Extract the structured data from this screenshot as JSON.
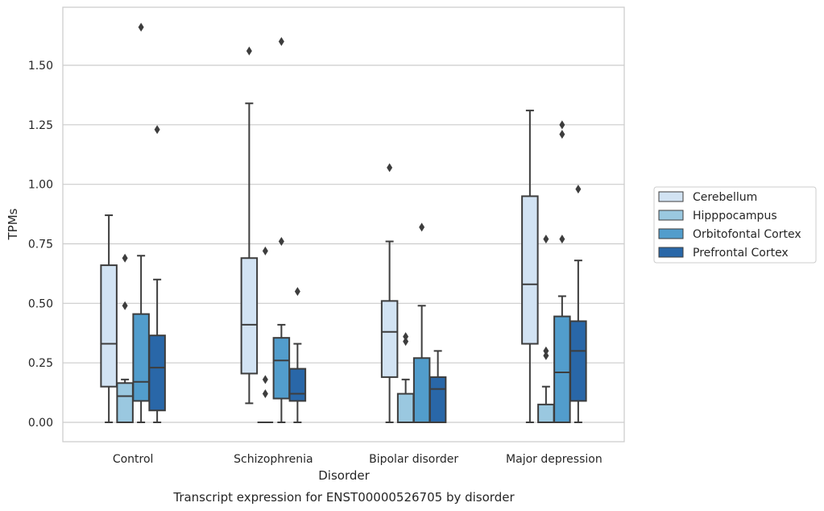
{
  "chart_data": {
    "type": "box",
    "title": "Transcript expression for ENST00000526705 by disorder",
    "xlabel": "Disorder",
    "ylabel": "TPMs",
    "ylim": [
      -0.08,
      1.75
    ],
    "yticks": [
      0.0,
      0.25,
      0.5,
      0.75,
      1.0,
      1.25,
      1.5
    ],
    "ytick_labels": [
      "0.00",
      "0.25",
      "0.50",
      "0.75",
      "1.00",
      "1.25",
      "1.50"
    ],
    "grid": "horizontal",
    "legend_position": "right",
    "categories": [
      "Control",
      "Schizophrenia",
      "Bipolar disorder",
      "Major depression"
    ],
    "series": [
      {
        "name": "Cerebellum",
        "color": "#d2e3f3",
        "boxes": [
          {
            "min": 0.0,
            "q1": 0.15,
            "median": 0.33,
            "q3": 0.66,
            "max": 0.87,
            "outliers": []
          },
          {
            "min": 0.08,
            "q1": 0.205,
            "median": 0.41,
            "q3": 0.69,
            "max": 1.34,
            "outliers": [
              1.56
            ]
          },
          {
            "min": 0.0,
            "q1": 0.19,
            "median": 0.38,
            "q3": 0.51,
            "max": 0.76,
            "outliers": [
              1.07
            ]
          },
          {
            "min": 0.0,
            "q1": 0.33,
            "median": 0.58,
            "q3": 0.95,
            "max": 1.31,
            "outliers": []
          }
        ]
      },
      {
        "name": "Hipppocampus",
        "color": "#9ac8e0",
        "boxes": [
          {
            "min": 0.0,
            "q1": 0.0,
            "median": 0.11,
            "q3": 0.165,
            "max": 0.18,
            "outliers": [
              0.49,
              0.69
            ]
          },
          {
            "min": 0.0,
            "q1": 0.0,
            "median": 0.0,
            "q3": 0.0,
            "max": 0.0,
            "outliers": [
              0.12,
              0.18,
              0.72
            ]
          },
          {
            "min": 0.0,
            "q1": 0.0,
            "median": 0.0,
            "q3": 0.12,
            "max": 0.18,
            "outliers": [
              0.34,
              0.36
            ]
          },
          {
            "min": 0.0,
            "q1": 0.0,
            "median": 0.0,
            "q3": 0.075,
            "max": 0.15,
            "outliers": [
              0.28,
              0.3,
              0.77
            ]
          }
        ]
      },
      {
        "name": "Orbitofontal Cortex",
        "color": "#529dcc",
        "boxes": [
          {
            "min": 0.0,
            "q1": 0.09,
            "median": 0.17,
            "q3": 0.455,
            "max": 0.7,
            "outliers": [
              1.66
            ]
          },
          {
            "min": 0.0,
            "q1": 0.1,
            "median": 0.26,
            "q3": 0.355,
            "max": 0.41,
            "outliers": [
              0.76,
              1.6
            ]
          },
          {
            "min": 0.0,
            "q1": 0.0,
            "median": 0.0,
            "q3": 0.27,
            "max": 0.49,
            "outliers": [
              0.82
            ]
          },
          {
            "min": 0.0,
            "q1": 0.0,
            "median": 0.21,
            "q3": 0.445,
            "max": 0.53,
            "outliers": [
              0.77,
              1.21,
              1.25
            ]
          }
        ]
      },
      {
        "name": "Prefrontal Cortex",
        "color": "#2967a8",
        "boxes": [
          {
            "min": 0.0,
            "q1": 0.05,
            "median": 0.23,
            "q3": 0.365,
            "max": 0.6,
            "outliers": [
              1.23
            ]
          },
          {
            "min": 0.0,
            "q1": 0.09,
            "median": 0.12,
            "q3": 0.225,
            "max": 0.33,
            "outliers": [
              0.55
            ]
          },
          {
            "min": 0.0,
            "q1": 0.0,
            "median": 0.14,
            "q3": 0.19,
            "max": 0.3,
            "outliers": []
          },
          {
            "min": 0.0,
            "q1": 0.09,
            "median": 0.3,
            "q3": 0.425,
            "max": 0.68,
            "outliers": [
              0.98
            ]
          }
        ]
      }
    ]
  }
}
